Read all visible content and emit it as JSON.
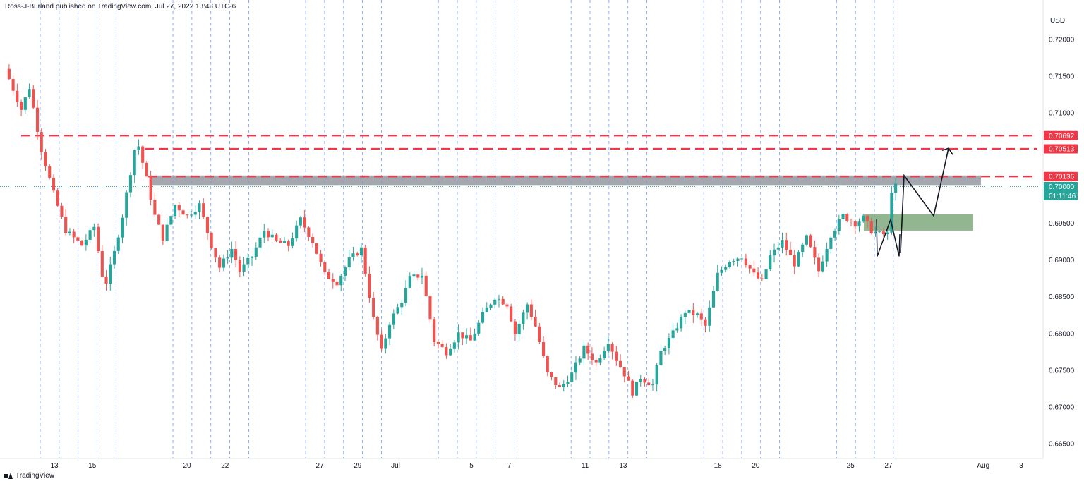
{
  "header": {
    "attribution": "Ross-J-Burland published on TradingView.com, Jul 27, 2022 13:48 UTC-6"
  },
  "footer": {
    "brand": "TradingView"
  },
  "colors": {
    "up": "#26a69a",
    "down": "#ef5350",
    "resistance": "#f23645",
    "zone_gray": "#9598a1",
    "zone_green": "#6e9e6b",
    "grid_dashed": "#2962ff",
    "axis_text": "#131722"
  },
  "chart_data": {
    "type": "candlestick",
    "symbol_currency": "USD",
    "timeframe": "4h",
    "y_axis": {
      "range": [
        0.664,
        0.724
      ],
      "ticks": [
        "0.72000",
        "0.71500",
        "0.71000",
        "0.70500",
        "0.70000",
        "0.69500",
        "0.69000",
        "0.68500",
        "0.68000",
        "0.67500",
        "0.67000",
        "0.66500"
      ]
    },
    "x_axis": {
      "range_days": [
        "Jun 12 2022",
        "Aug 4 2022"
      ],
      "ticks": [
        {
          "label": "13",
          "date": "Jun 13"
        },
        {
          "label": "15",
          "date": "Jun 15"
        },
        {
          "label": "20",
          "date": "Jun 20"
        },
        {
          "label": "22",
          "date": "Jun 22"
        },
        {
          "label": "27",
          "date": "Jun 27"
        },
        {
          "label": "29",
          "date": "Jun 29"
        },
        {
          "label": "Jul",
          "date": "Jul 1"
        },
        {
          "label": "5",
          "date": "Jul 5"
        },
        {
          "label": "7",
          "date": "Jul 7"
        },
        {
          "label": "11",
          "date": "Jul 11"
        },
        {
          "label": "13",
          "date": "Jul 13"
        },
        {
          "label": "18",
          "date": "Jul 18"
        },
        {
          "label": "20",
          "date": "Jul 20"
        },
        {
          "label": "25",
          "date": "Jul 25"
        },
        {
          "label": "27",
          "date": "Jul 27"
        },
        {
          "label": "Aug",
          "date": "Aug 1"
        },
        {
          "label": "3",
          "date": "Aug 3"
        }
      ]
    },
    "price_labels": [
      {
        "value": "0.70692",
        "style": "resistance"
      },
      {
        "value": "0.70513",
        "style": "resistance"
      },
      {
        "value": "0.70136",
        "style": "resistance"
      },
      {
        "value": "0.70000",
        "style": "current",
        "countdown": "01:11:46"
      }
    ],
    "resistance_levels": [
      0.70692,
      0.70513,
      0.70136
    ],
    "current_price": 0.7,
    "zones": [
      {
        "name": "gray-resistance-zone",
        "top": 0.7015,
        "bottom": 0.7002,
        "color": "#9598a1"
      },
      {
        "name": "green-support-zone",
        "top": 0.6962,
        "bottom": 0.694,
        "color": "#6e9e6b"
      }
    ],
    "waypoints": [
      [
        0.694,
        0.706
      ],
      [
        0.6956,
        0.6955
      ],
      [
        0.697,
        0.6965
      ],
      [
        0.6984,
        0.697
      ],
      [
        0.6998,
        0.697
      ],
      [
        0.7012,
        0.699
      ],
      [
        0.7026,
        0.698
      ],
      [
        0.704,
        0.699
      ],
      [
        0.7054,
        0.688
      ],
      [
        0.7068,
        0.6865
      ],
      [
        0.7082,
        0.687
      ],
      [
        0.7096,
        0.691
      ],
      [
        0.711,
        0.692
      ],
      [
        0.7124,
        0.693
      ],
      [
        0.7138,
        0.7
      ],
      [
        0.7152,
        0.6995
      ],
      [
        0.7166,
        0.701
      ],
      [
        0.718,
        0.705
      ],
      [
        0.7194,
        0.706
      ]
    ],
    "path_points": [
      {
        "t": 0,
        "p": 0.716
      },
      {
        "t": 4,
        "p": 0.7105
      },
      {
        "t": 6,
        "p": 0.7135
      },
      {
        "t": 9,
        "p": 0.705
      },
      {
        "t": 12,
        "p": 0.699
      },
      {
        "t": 15,
        "p": 0.694
      },
      {
        "t": 19,
        "p": 0.692
      },
      {
        "t": 22,
        "p": 0.6945
      },
      {
        "t": 24,
        "p": 0.688
      },
      {
        "t": 25,
        "p": 0.687
      },
      {
        "t": 27,
        "p": 0.691
      },
      {
        "t": 29,
        "p": 0.696
      },
      {
        "t": 32,
        "p": 0.705
      },
      {
        "t": 33,
        "p": 0.7055
      },
      {
        "t": 35,
        "p": 0.701
      },
      {
        "t": 37,
        "p": 0.696
      },
      {
        "t": 39,
        "p": 0.693
      },
      {
        "t": 42,
        "p": 0.6975
      },
      {
        "t": 45,
        "p": 0.696
      },
      {
        "t": 48,
        "p": 0.6975
      },
      {
        "t": 51,
        "p": 0.692
      },
      {
        "t": 53,
        "p": 0.689
      },
      {
        "t": 56,
        "p": 0.6915
      },
      {
        "t": 58,
        "p": 0.6885
      },
      {
        "t": 61,
        "p": 0.6905
      },
      {
        "t": 64,
        "p": 0.694
      },
      {
        "t": 67,
        "p": 0.6925
      },
      {
        "t": 70,
        "p": 0.692
      },
      {
        "t": 73,
        "p": 0.6955
      },
      {
        "t": 76,
        "p": 0.6925
      },
      {
        "t": 79,
        "p": 0.688
      },
      {
        "t": 82,
        "p": 0.687
      },
      {
        "t": 85,
        "p": 0.69
      },
      {
        "t": 88,
        "p": 0.6915
      },
      {
        "t": 91,
        "p": 0.682
      },
      {
        "t": 93,
        "p": 0.6775
      },
      {
        "t": 95,
        "p": 0.6815
      },
      {
        "t": 98,
        "p": 0.6845
      },
      {
        "t": 100,
        "p": 0.6875
      },
      {
        "t": 103,
        "p": 0.688
      },
      {
        "t": 106,
        "p": 0.679
      },
      {
        "t": 109,
        "p": 0.6775
      },
      {
        "t": 112,
        "p": 0.68
      },
      {
        "t": 115,
        "p": 0.679
      },
      {
        "t": 118,
        "p": 0.6825
      },
      {
        "t": 121,
        "p": 0.685
      },
      {
        "t": 124,
        "p": 0.684
      },
      {
        "t": 126,
        "p": 0.68
      },
      {
        "t": 129,
        "p": 0.684
      },
      {
        "t": 131,
        "p": 0.681
      },
      {
        "t": 134,
        "p": 0.6745
      },
      {
        "t": 137,
        "p": 0.6725
      },
      {
        "t": 140,
        "p": 0.6745
      },
      {
        "t": 143,
        "p": 0.678
      },
      {
        "t": 146,
        "p": 0.676
      },
      {
        "t": 149,
        "p": 0.679
      },
      {
        "t": 151,
        "p": 0.6765
      },
      {
        "t": 153,
        "p": 0.6745
      },
      {
        "t": 155,
        "p": 0.672
      },
      {
        "t": 157,
        "p": 0.674
      },
      {
        "t": 160,
        "p": 0.673
      },
      {
        "t": 162,
        "p": 0.6775
      },
      {
        "t": 165,
        "p": 0.68
      },
      {
        "t": 168,
        "p": 0.683
      },
      {
        "t": 171,
        "p": 0.6825
      },
      {
        "t": 173,
        "p": 0.681
      },
      {
        "t": 176,
        "p": 0.688
      },
      {
        "t": 179,
        "p": 0.69
      },
      {
        "t": 182,
        "p": 0.6905
      },
      {
        "t": 185,
        "p": 0.688
      },
      {
        "t": 187,
        "p": 0.687
      },
      {
        "t": 189,
        "p": 0.6905
      },
      {
        "t": 192,
        "p": 0.6925
      },
      {
        "t": 195,
        "p": 0.6895
      },
      {
        "t": 198,
        "p": 0.693
      },
      {
        "t": 201,
        "p": 0.6885
      },
      {
        "t": 204,
        "p": 0.6935
      },
      {
        "t": 207,
        "p": 0.696
      },
      {
        "t": 210,
        "p": 0.695
      },
      {
        "t": 212,
        "p": 0.6957
      },
      {
        "t": 214,
        "p": 0.694
      },
      {
        "t": 216,
        "p": 0.6935
      },
      {
        "t": 218,
        "p": 0.6935
      },
      {
        "t": 219,
        "p": 0.6995
      },
      {
        "t": 220,
        "p": 0.7
      }
    ]
  }
}
